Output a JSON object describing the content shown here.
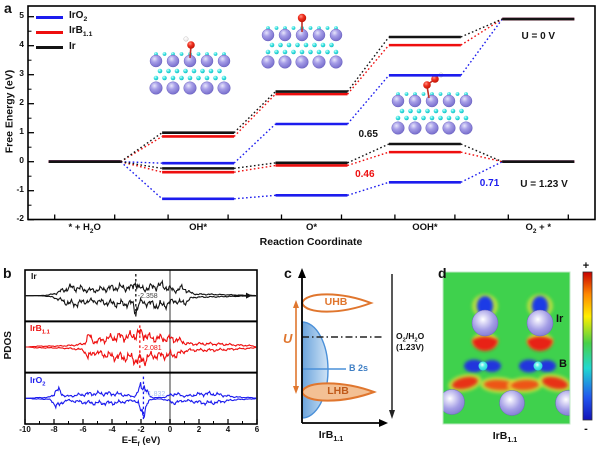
{
  "panel_labels": {
    "a": "a",
    "b": "b",
    "c": "c",
    "d": "d"
  },
  "chart_data": [
    {
      "id": "free_energy_diagram",
      "panel": "a",
      "type": "line",
      "xlabel": "Reaction Coordinate",
      "ylabel": "Free Energy (eV)",
      "categories": [
        "* + H_{2}O",
        "OH*",
        "O*",
        "OOH*",
        "O_{2} + *"
      ],
      "yticks": [
        -2,
        -1,
        0,
        1,
        2,
        3,
        4,
        5
      ],
      "ylim": [
        -2,
        5.4
      ],
      "legend": [
        {
          "name": "IrO_{2}",
          "color": "#1c1cee"
        },
        {
          "name": "IrB_{1.1}",
          "color": "#ee0e0e"
        },
        {
          "name": "Ir",
          "color": "#141414"
        }
      ],
      "series": [
        {
          "name": "IrO_{2}",
          "potential": "U = 0 V",
          "color": "#1c1cee",
          "values": [
            0,
            -0.05,
            1.3,
            2.98,
            4.92
          ]
        },
        {
          "name": "IrB_{1.1}",
          "potential": "U = 0 V",
          "color": "#ee0e0e",
          "values": [
            0,
            0.87,
            2.33,
            4.02,
            4.92
          ]
        },
        {
          "name": "Ir",
          "potential": "U = 0 V",
          "color": "#141414",
          "values": [
            0,
            1.0,
            2.42,
            4.3,
            4.92
          ]
        },
        {
          "name": "IrO_{2}",
          "potential": "U = 1.23 V",
          "color": "#1c1cee",
          "values": [
            0,
            -1.28,
            -1.16,
            -0.71,
            0
          ]
        },
        {
          "name": "IrB_{1.1}",
          "potential": "U = 1.23 V",
          "color": "#ee0e0e",
          "values": [
            0,
            -0.36,
            -0.13,
            0.33,
            0
          ]
        },
        {
          "name": "Ir",
          "potential": "U = 1.23 V",
          "color": "#141414",
          "values": [
            0,
            -0.23,
            -0.04,
            0.61,
            0
          ]
        }
      ],
      "annotations": [
        {
          "text": "0.65",
          "color": "#141414",
          "cat": 2.5,
          "energy": 0.9
        },
        {
          "text": "0.46",
          "color": "#ee0e0e",
          "cat": 2.47,
          "energy": -0.5
        },
        {
          "text": "0.71",
          "color": "#1c1cee",
          "cat": 3.57,
          "energy": -0.82
        },
        {
          "text": "U = 0 V",
          "color": "#141414",
          "cat": 4.0,
          "energy": 4.28
        },
        {
          "text": "U = 1.23 V",
          "color": "#141414",
          "cat": 4.05,
          "energy": -0.85
        }
      ]
    },
    {
      "id": "pdos",
      "panel": "b",
      "type": "line",
      "xlabel": "E-E_{f} (eV)",
      "ylabel": "PDOS",
      "xlim": [
        -10,
        6
      ],
      "xticks": [
        -10,
        -8,
        -6,
        -4,
        -2,
        0,
        2,
        4,
        6
      ],
      "fermi_level": 0,
      "panels": [
        {
          "name": "Ir",
          "color": "#141414",
          "band_center": -2.358,
          "band_center_label": "-2.358"
        },
        {
          "name": "IrB_{1.1}",
          "color": "#ee0e0e",
          "band_center": -2.081,
          "band_center_label": "-2.081"
        },
        {
          "name": "IrO_{2}",
          "color": "#1c1cee",
          "band_center": -1.832,
          "band_center_label": "-1.832"
        }
      ]
    },
    {
      "id": "band_schematic",
      "panel": "c",
      "type": "diagram",
      "xlabel": "IrB_{1.1}",
      "upper_hubbard_band": "UHB",
      "lower_hubbard_band": "LHB",
      "b2s_band": "B 2s",
      "hubbard_u": "U",
      "redox_level_line1": "O_{2}/H_{2}O",
      "redox_level_line2": "(1.23V)",
      "colors": {
        "hubbard_orange": "#e0762e",
        "b2s_blue": "#4a90d9"
      }
    },
    {
      "id": "charge_density_map",
      "panel": "d",
      "type": "heatmap",
      "xlabel": "IrB_{1.1}",
      "atom_labels": {
        "ir": "Ir",
        "b": "B"
      },
      "colorbar": {
        "top": "+",
        "bottom": "-"
      }
    }
  ]
}
